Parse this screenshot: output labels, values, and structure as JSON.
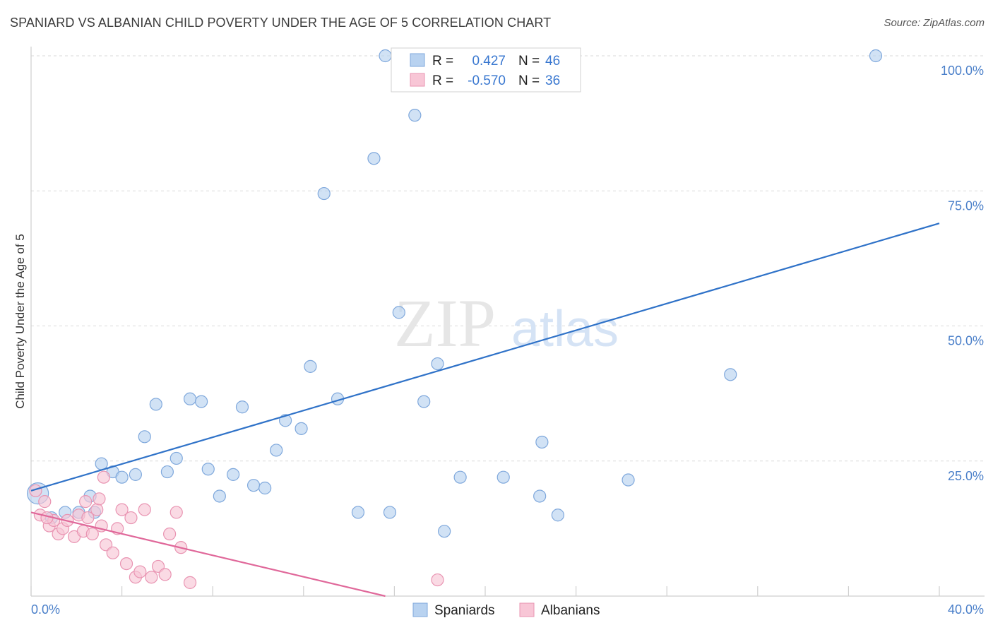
{
  "header": {
    "title": "SPANIARD VS ALBANIAN CHILD POVERTY UNDER THE AGE OF 5 CORRELATION CHART",
    "source": "Source: ZipAtlas.com"
  },
  "watermark": {
    "zip": "ZIP",
    "atlas": "atlas"
  },
  "legend_top": [
    {
      "r_label": "R =",
      "r_value": "0.427",
      "n_label": "N =",
      "n_value": "46"
    },
    {
      "r_label": "R =",
      "r_value": "-0.570",
      "n_label": "N =",
      "n_value": "36"
    }
  ],
  "legend_bottom": [
    "Spaniards",
    "Albanians"
  ],
  "colors": {
    "spaniards_fill": "#b8d2f0",
    "spaniards_stroke": "#7fa8dc",
    "spaniards_line": "#2f72c8",
    "albanians_fill": "#f8c6d6",
    "albanians_stroke": "#e994b2",
    "albanians_line": "#e0689a",
    "tick_label": "#4a7fc9",
    "grid": "#d9d9d9"
  },
  "chart_data": {
    "type": "scatter",
    "title": "SPANIARD VS ALBANIAN CHILD POVERTY UNDER THE AGE OF 5 CORRELATION CHART",
    "xlabel": "",
    "ylabel": "Child Poverty Under the Age of 5",
    "xlim": [
      0,
      40
    ],
    "ylim": [
      0,
      100
    ],
    "x_tick_labels": [
      "0.0%",
      "40.0%"
    ],
    "y_tick_values": [
      25,
      50,
      75,
      100
    ],
    "y_tick_labels": [
      "25.0%",
      "50.0%",
      "75.0%",
      "100.0%"
    ],
    "grid": true,
    "legend_position": "top-center",
    "series": [
      {
        "name": "Spaniards",
        "R": 0.427,
        "N": 46,
        "trend": [
          [
            0,
            19.5
          ],
          [
            40,
            69
          ]
        ],
        "points": [
          [
            0.3,
            19.0
          ],
          [
            1.5,
            15.5
          ],
          [
            2.1,
            15.5
          ],
          [
            2.6,
            18.5
          ],
          [
            3.1,
            24.5
          ],
          [
            3.6,
            23.0
          ],
          [
            4.0,
            22.0
          ],
          [
            4.6,
            22.5
          ],
          [
            5.0,
            29.5
          ],
          [
            5.5,
            35.5
          ],
          [
            6.0,
            23.0
          ],
          [
            6.4,
            25.5
          ],
          [
            7.0,
            36.5
          ],
          [
            7.5,
            36.0
          ],
          [
            7.8,
            23.5
          ],
          [
            8.3,
            18.5
          ],
          [
            8.9,
            22.5
          ],
          [
            9.3,
            35.0
          ],
          [
            9.8,
            20.5
          ],
          [
            10.3,
            20.0
          ],
          [
            10.8,
            27.0
          ],
          [
            11.2,
            32.5
          ],
          [
            11.9,
            31.0
          ],
          [
            12.3,
            42.5
          ],
          [
            12.9,
            74.5
          ],
          [
            13.5,
            36.5
          ],
          [
            14.4,
            15.5
          ],
          [
            15.1,
            81.0
          ],
          [
            15.6,
            100.0
          ],
          [
            15.8,
            15.5
          ],
          [
            16.2,
            52.5
          ],
          [
            16.9,
            89.0
          ],
          [
            17.3,
            36.0
          ],
          [
            17.9,
            43.0
          ],
          [
            18.2,
            12.0
          ],
          [
            18.9,
            22.0
          ],
          [
            20.0,
            100.0
          ],
          [
            20.8,
            22.0
          ],
          [
            22.4,
            18.5
          ],
          [
            22.5,
            28.5
          ],
          [
            23.2,
            15.0
          ],
          [
            26.3,
            21.5
          ],
          [
            30.8,
            41.0
          ],
          [
            37.2,
            100.0
          ],
          [
            0.9,
            14.5
          ],
          [
            2.8,
            15.5
          ]
        ]
      },
      {
        "name": "Albanians",
        "R": -0.57,
        "N": 36,
        "trend": [
          [
            0,
            15.5
          ],
          [
            15.6,
            0
          ]
        ],
        "points": [
          [
            0.2,
            19.5
          ],
          [
            0.4,
            15.0
          ],
          [
            0.6,
            17.5
          ],
          [
            0.8,
            13.0
          ],
          [
            1.0,
            14.0
          ],
          [
            1.2,
            11.5
          ],
          [
            1.4,
            12.5
          ],
          [
            1.6,
            14.0
          ],
          [
            1.9,
            11.0
          ],
          [
            2.1,
            15.0
          ],
          [
            2.3,
            12.0
          ],
          [
            2.5,
            14.5
          ],
          [
            2.7,
            11.5
          ],
          [
            2.9,
            16.0
          ],
          [
            3.1,
            13.0
          ],
          [
            3.3,
            9.5
          ],
          [
            3.6,
            8.0
          ],
          [
            3.8,
            12.5
          ],
          [
            4.0,
            16.0
          ],
          [
            4.2,
            6.0
          ],
          [
            4.4,
            14.5
          ],
          [
            4.6,
            3.5
          ],
          [
            4.8,
            4.5
          ],
          [
            5.0,
            16.0
          ],
          [
            5.3,
            3.5
          ],
          [
            5.6,
            5.5
          ],
          [
            5.9,
            4.0
          ],
          [
            6.1,
            11.5
          ],
          [
            6.4,
            15.5
          ],
          [
            6.6,
            9.0
          ],
          [
            7.0,
            2.5
          ],
          [
            3.0,
            18.0
          ],
          [
            2.4,
            17.5
          ],
          [
            3.2,
            22.0
          ],
          [
            0.7,
            14.5
          ],
          [
            17.9,
            3.0
          ]
        ]
      }
    ]
  }
}
